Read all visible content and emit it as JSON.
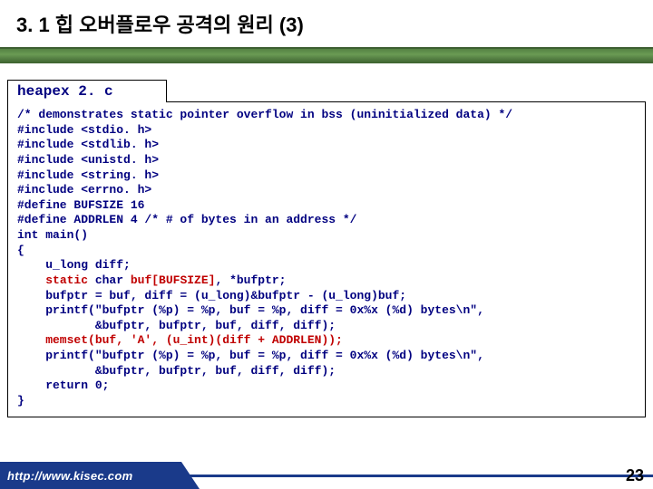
{
  "title": "3. 1 힙 오버플로우 공격의 원리 (3)",
  "filename": "heapex 2. c",
  "code": {
    "l1": "/* demonstrates static pointer overflow in bss (uninitialized data) */",
    "l2": "#include <stdio. h>",
    "l3": "#include <stdlib. h>",
    "l4": "#include <unistd. h>",
    "l5": "#include <string. h>",
    "l6": "#include <errno. h>",
    "l7": "#define BUFSIZE 16",
    "l8": "#define ADDRLEN 4 /* # of bytes in an address */",
    "l9": "int main()",
    "l10": "{",
    "l11_indent": "    u_long diff;",
    "l12_a": "    ",
    "l12_static": "static",
    "l12_b": " char ",
    "l12_buf": "buf[BUFSIZE]",
    "l12_c": ", *bufptr;",
    "l13": "    bufptr = buf, diff = (u_long)&bufptr - (u_long)buf;",
    "l14": "    printf(\"bufptr (%p) = %p, buf = %p, diff = 0x%x (%d) bytes\\n\",",
    "l15": "           &bufptr, bufptr, buf, diff, diff);",
    "l16": "    memset(buf, 'A', (u_int)(diff + ADDRLEN));",
    "l17": "    printf(\"bufptr (%p) = %p, buf = %p, diff = 0x%x (%d) bytes\\n\",",
    "l18": "           &bufptr, bufptr, buf, diff, diff);",
    "l19": "    return 0;",
    "l20": "}"
  },
  "footer_url": "http://www.kisec.com",
  "page_number": "23",
  "colors": {
    "code_text": "#000080",
    "highlight": "#c00000",
    "green_bar": "#4d7a3e",
    "footer_blue": "#1a3a8a"
  }
}
